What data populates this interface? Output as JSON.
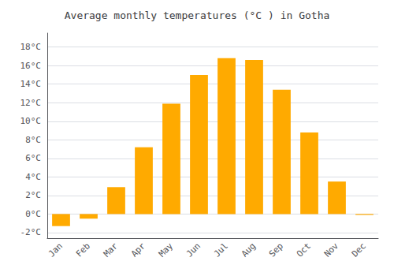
{
  "chart_data": {
    "type": "bar",
    "title": "Average monthly temperatures (°C ) in Gotha",
    "categories": [
      "Jan",
      "Feb",
      "Mar",
      "Apr",
      "May",
      "Jun",
      "Jul",
      "Aug",
      "Sep",
      "Oct",
      "Nov",
      "Dec"
    ],
    "values": [
      -1.3,
      -0.5,
      2.9,
      7.2,
      11.9,
      15.0,
      16.8,
      16.6,
      13.4,
      8.8,
      3.5,
      -0.1
    ],
    "color": "#FFAA00",
    "ylim": [
      -2.6,
      19.5
    ],
    "yticks": [
      {
        "value": -2,
        "label": "-2°C"
      },
      {
        "value": 0,
        "label": "0°C"
      },
      {
        "value": 2,
        "label": "2°C"
      },
      {
        "value": 4,
        "label": "4°C"
      },
      {
        "value": 6,
        "label": "6°C"
      },
      {
        "value": 8,
        "label": "8°C"
      },
      {
        "value": 10,
        "label": "10°C"
      },
      {
        "value": 12,
        "label": "12°C"
      },
      {
        "value": 14,
        "label": "14°C"
      },
      {
        "value": 16,
        "label": "16°C"
      },
      {
        "value": 18,
        "label": "18°C"
      }
    ],
    "grid": true
  }
}
